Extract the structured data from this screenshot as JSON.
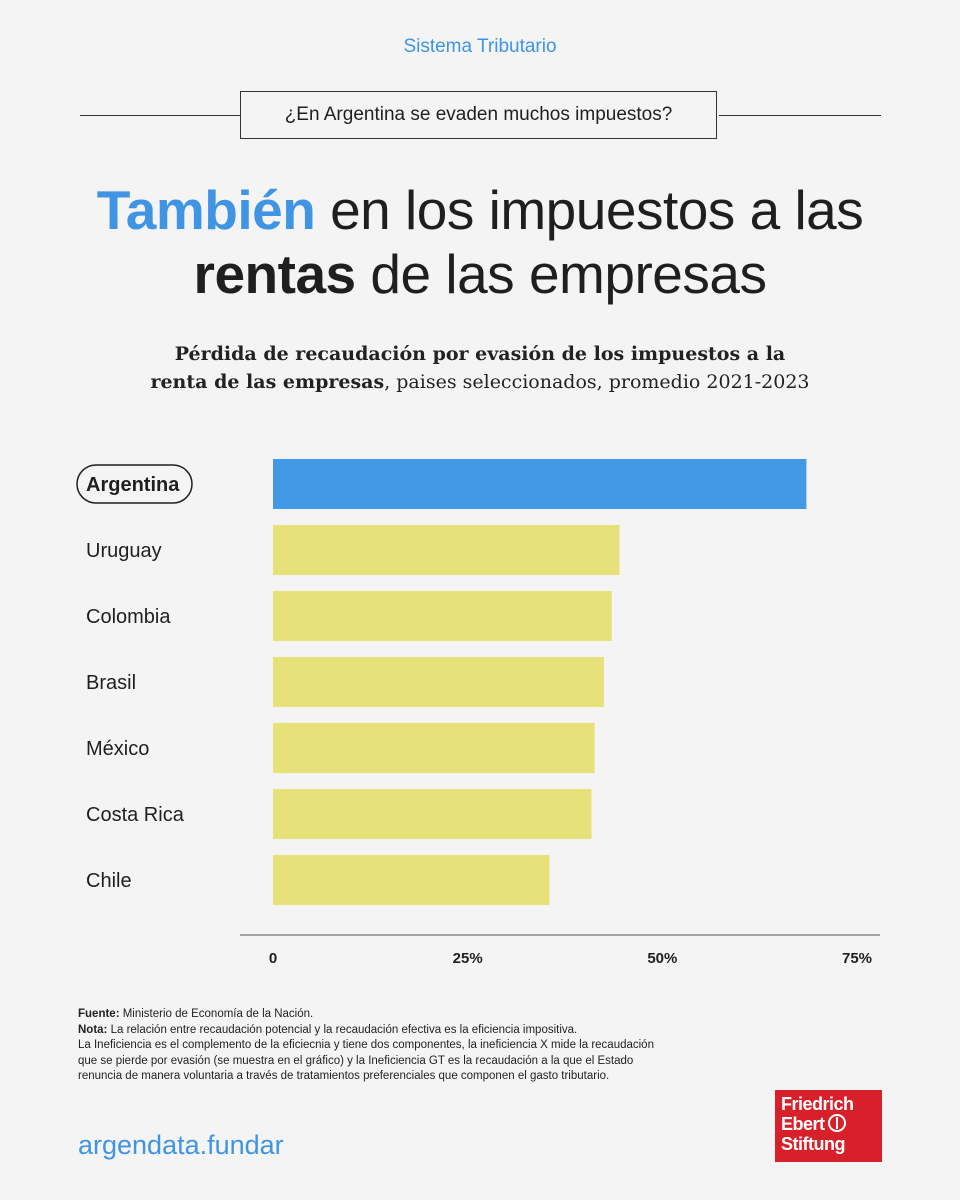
{
  "header": {
    "section": "Sistema Tributario",
    "question": "¿En Argentina se evaden muchos impuestos?"
  },
  "headline": {
    "part1_blue": "También",
    "part2": " en los impuestos a las",
    "part3_bold": "rentas",
    "part4": " de las empresas"
  },
  "subtitle": {
    "bold1": "Pérdida de recaudación por evasión de los impuestos a la",
    "bold2": "renta de las empresas",
    "rest": ", paises seleccionados, promedio 2021-2023"
  },
  "colors": {
    "highlight": "#4299e5",
    "bar": "#e7e17a",
    "accent": "#3f95e4",
    "logo_bg": "#d7202a"
  },
  "chart_data": {
    "type": "bar",
    "orientation": "horizontal",
    "categories": [
      "Argentina",
      "Uruguay",
      "Colombia",
      "Brasil",
      "México",
      "Costa Rica",
      "Chile"
    ],
    "values": [
      68.5,
      44.5,
      43.5,
      42.5,
      41.3,
      40.9,
      35.5
    ],
    "highlight": "Argentina",
    "xlim": [
      0,
      75
    ],
    "xticks": [
      "0",
      "25%",
      "50%",
      "75%"
    ],
    "xtick_values": [
      0,
      25,
      50,
      75
    ],
    "grid": false
  },
  "footer": {
    "source_label": "Fuente:",
    "source_text": " Ministerio de Economía de la Nación.",
    "note_label": "Nota:",
    "note_line1": " La relación entre recaudación potencial y la recaudación efectiva es la eficiencia impositiva.",
    "note_line2": "La Ineficiencia es el complemento de la eficiecnia y tiene dos componentes, la ineficiencia X mide la recaudación",
    "note_line3": "que se pierde por evasión (se muestra en el gráfico) y la Ineficiencia GT es la recaudación a la que el Estado",
    "note_line4": "renuncia de manera voluntaria a través de tratamientos preferenciales que componen el gasto tributario.",
    "site": "argendata.fundar",
    "logo_line1": "Friedrich",
    "logo_line2": "Ebert",
    "logo_line3": "Stiftung"
  }
}
